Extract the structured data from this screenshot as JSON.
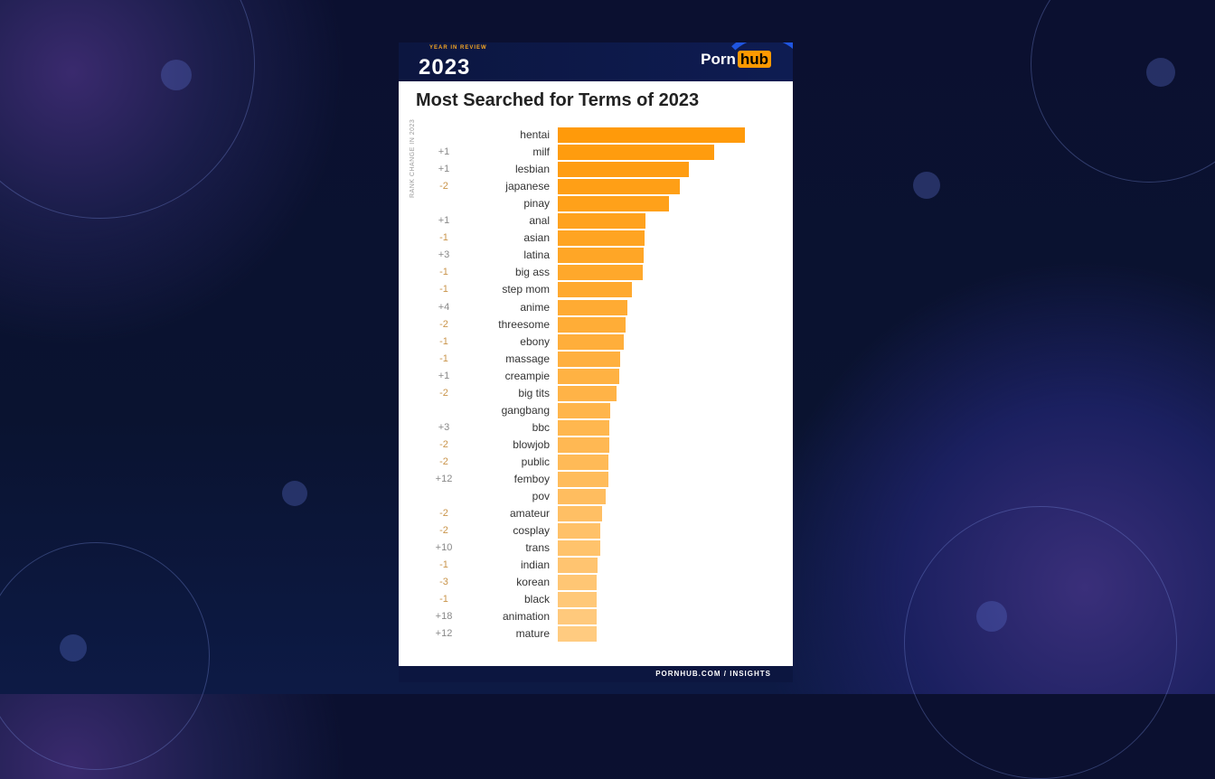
{
  "header": {
    "badge": "YEAR IN REVIEW",
    "year": "2023",
    "logo_left": "Porn",
    "logo_right": "hub"
  },
  "footer": {
    "text": "PORNHUB.COM / INSIGHTS"
  },
  "chart_data": {
    "type": "bar",
    "orientation": "horizontal",
    "title": "Most Searched for Terms of 2023",
    "rank_change_label": "RANK CHANGE IN 2023",
    "categories": [
      "hentai",
      "milf",
      "lesbian",
      "japanese",
      "pinay",
      "anal",
      "asian",
      "latina",
      "big ass",
      "step mom",
      "anime",
      "threesome",
      "ebony",
      "massage",
      "creampie",
      "big tits",
      "gangbang",
      "bbc",
      "blowjob",
      "public",
      "femboy",
      "pov",
      "amateur",
      "cosplay",
      "trans",
      "indian",
      "korean",
      "black",
      "animation",
      "mature"
    ],
    "rank_changes": [
      "",
      "+1",
      "+1",
      "-2",
      "",
      "+1",
      "-1",
      "+3",
      "-1",
      "-1",
      "+4",
      "-2",
      "-1",
      "-1",
      "+1",
      "-2",
      "",
      "+3",
      "-2",
      "-2",
      "+12",
      "",
      "-2",
      "-2",
      "+10",
      "-1",
      "-3",
      "-1",
      "+18",
      "+12"
    ],
    "values": [
      207,
      173,
      145,
      135,
      123,
      97,
      96,
      95,
      94,
      82,
      77,
      75,
      73,
      69,
      68,
      65,
      58,
      57,
      57,
      56,
      56,
      53,
      49,
      47,
      47,
      44,
      43,
      43,
      43,
      43
    ],
    "value_note": "relative search volume (no axis shown)",
    "colors": {
      "start": "#ff9a0a",
      "end": "#ffcb80"
    }
  }
}
